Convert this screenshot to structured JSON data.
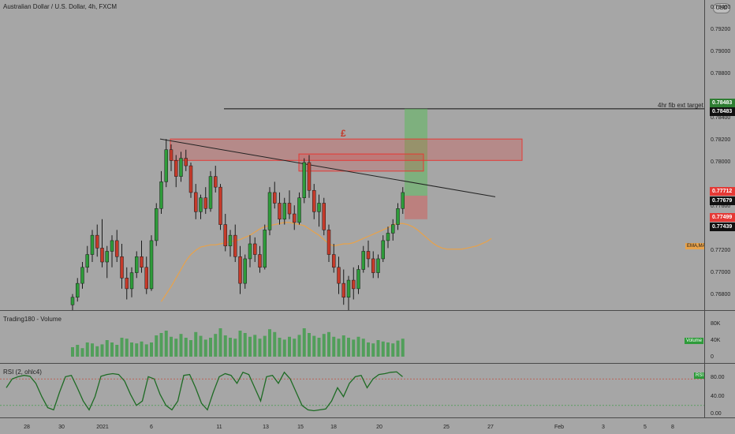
{
  "header": {
    "symbol_title": "Australian Dollar / U.S. Dollar, 4h, FXCM",
    "currency_button": "USD"
  },
  "annotations": {
    "fib_label": "4hr fib ext target",
    "symbol_mark": "£"
  },
  "price_axis": {
    "ticks": [
      "0.79400",
      "0.79200",
      "0.79000",
      "0.78800",
      "0.78400",
      "0.78200",
      "0.78000",
      "0.77600",
      "0.77200",
      "0.77000",
      "0.76800"
    ],
    "tags": [
      {
        "label": "0.78483",
        "color": "#2e7d32",
        "text": "#ffffff"
      },
      {
        "label": "0.78483",
        "color": "#111111",
        "text": "#ffffff"
      },
      {
        "label": "0.77712",
        "color": "#e53935",
        "text": "#ffffff"
      },
      {
        "label": "0.77679",
        "color": "#111111",
        "text": "#ffffff"
      },
      {
        "label": "0.77499",
        "color": "#e53935",
        "text": "#ffffff"
      },
      {
        "label": "0.77439",
        "color": "#111111",
        "text": "#ffffff"
      }
    ],
    "ema_badge": "EMA,MA"
  },
  "volume_pane": {
    "title": "Trading180 - Volume",
    "ticks": [
      "80K",
      "40K",
      "0"
    ],
    "badge": "Volume"
  },
  "rsi_pane": {
    "title": "RSI (2, ohlc4)",
    "ticks": [
      "80.00",
      "40.00",
      "0.00"
    ],
    "badge": "RSI"
  },
  "time_axis": {
    "ticks": [
      "28",
      "30",
      "2021",
      "6",
      "11",
      "13",
      "15",
      "18",
      "20",
      "25",
      "27",
      "Feb",
      "3",
      "5",
      "8"
    ]
  },
  "colors": {
    "up": "#2e9b3a",
    "down": "#c53a2a",
    "ema": "#e8a24a",
    "zone_red": "#e53935",
    "target_green": "#5cb85c"
  },
  "chart_data": {
    "type": "candlestick",
    "ylim": [
      0.766,
      0.795
    ],
    "fib_target": 0.78483,
    "last_close": 0.77712,
    "candles": [
      [
        0.7665,
        0.7675,
        0.766,
        0.7672
      ],
      [
        0.7672,
        0.769,
        0.7668,
        0.7685
      ],
      [
        0.7685,
        0.7705,
        0.768,
        0.77
      ],
      [
        0.77,
        0.772,
        0.7695,
        0.7712
      ],
      [
        0.7712,
        0.7735,
        0.7705,
        0.773
      ],
      [
        0.773,
        0.774,
        0.771,
        0.7718
      ],
      [
        0.7718,
        0.7745,
        0.77,
        0.7705
      ],
      [
        0.7705,
        0.772,
        0.769,
        0.7715
      ],
      [
        0.7715,
        0.773,
        0.77,
        0.7725
      ],
      [
        0.7725,
        0.7735,
        0.7705,
        0.771
      ],
      [
        0.771,
        0.7722,
        0.768,
        0.769
      ],
      [
        0.769,
        0.77,
        0.767,
        0.768
      ],
      [
        0.768,
        0.77,
        0.7672,
        0.7695
      ],
      [
        0.7695,
        0.7715,
        0.769,
        0.771
      ],
      [
        0.771,
        0.7725,
        0.7695,
        0.77
      ],
      [
        0.77,
        0.771,
        0.7675,
        0.768
      ],
      [
        0.768,
        0.773,
        0.7678,
        0.7725
      ],
      [
        0.7725,
        0.776,
        0.772,
        0.7755
      ],
      [
        0.7755,
        0.779,
        0.775,
        0.778
      ],
      [
        0.778,
        0.782,
        0.7775,
        0.781
      ],
      [
        0.781,
        0.7815,
        0.779,
        0.78
      ],
      [
        0.78,
        0.7805,
        0.7775,
        0.7785
      ],
      [
        0.7785,
        0.7808,
        0.778,
        0.7802
      ],
      [
        0.7802,
        0.781,
        0.779,
        0.7795
      ],
      [
        0.7795,
        0.7798,
        0.7765,
        0.777
      ],
      [
        0.777,
        0.7778,
        0.7745,
        0.7752
      ],
      [
        0.7752,
        0.7768,
        0.7745,
        0.7765
      ],
      [
        0.7765,
        0.7775,
        0.775,
        0.7755
      ],
      [
        0.7755,
        0.779,
        0.7752,
        0.7785
      ],
      [
        0.7785,
        0.7795,
        0.777,
        0.7775
      ],
      [
        0.7775,
        0.7778,
        0.7735,
        0.774
      ],
      [
        0.774,
        0.775,
        0.7715,
        0.772
      ],
      [
        0.772,
        0.7735,
        0.771,
        0.773
      ],
      [
        0.773,
        0.774,
        0.7705,
        0.771
      ],
      [
        0.771,
        0.772,
        0.7675,
        0.7685
      ],
      [
        0.7685,
        0.7712,
        0.768,
        0.7708
      ],
      [
        0.7708,
        0.773,
        0.77,
        0.7722
      ],
      [
        0.7722,
        0.7728,
        0.7705,
        0.7712
      ],
      [
        0.7712,
        0.772,
        0.7695,
        0.77
      ],
      [
        0.77,
        0.774,
        0.7698,
        0.7735
      ],
      [
        0.7735,
        0.7775,
        0.773,
        0.777
      ],
      [
        0.777,
        0.778,
        0.7755,
        0.776
      ],
      [
        0.776,
        0.777,
        0.774,
        0.7745
      ],
      [
        0.7745,
        0.7765,
        0.774,
        0.776
      ],
      [
        0.776,
        0.7772,
        0.7745,
        0.775
      ],
      [
        0.775,
        0.7758,
        0.7735,
        0.7742
      ],
      [
        0.7742,
        0.777,
        0.774,
        0.7765
      ],
      [
        0.7765,
        0.7802,
        0.776,
        0.7798
      ],
      [
        0.7798,
        0.7805,
        0.7765,
        0.7772
      ],
      [
        0.7772,
        0.7778,
        0.7745,
        0.7752
      ],
      [
        0.7752,
        0.7768,
        0.7738,
        0.776
      ],
      [
        0.776,
        0.7765,
        0.773,
        0.7735
      ],
      [
        0.7735,
        0.774,
        0.7705,
        0.7712
      ],
      [
        0.7712,
        0.7722,
        0.7695,
        0.77
      ],
      [
        0.77,
        0.771,
        0.7675,
        0.7685
      ],
      [
        0.7685,
        0.7698,
        0.7665,
        0.7672
      ],
      [
        0.7672,
        0.7692,
        0.766,
        0.7688
      ],
      [
        0.7688,
        0.77,
        0.767,
        0.768
      ],
      [
        0.768,
        0.7702,
        0.7675,
        0.7698
      ],
      [
        0.7698,
        0.772,
        0.7695,
        0.7715
      ],
      [
        0.7715,
        0.7725,
        0.77,
        0.7708
      ],
      [
        0.7708,
        0.7715,
        0.769,
        0.7695
      ],
      [
        0.7695,
        0.7712,
        0.769,
        0.7708
      ],
      [
        0.7708,
        0.773,
        0.7705,
        0.7725
      ],
      [
        0.7725,
        0.7738,
        0.7718,
        0.7732
      ],
      [
        0.7732,
        0.7745,
        0.7725,
        0.774
      ],
      [
        0.774,
        0.776,
        0.7735,
        0.7755
      ],
      [
        0.7755,
        0.7775,
        0.775,
        0.777
      ]
    ],
    "ema": [
      0.7668,
      0.7675,
      0.7682,
      0.769,
      0.7698,
      0.7706,
      0.7712,
      0.7716,
      0.7719,
      0.772,
      0.7721,
      0.7721,
      0.7722,
      0.7723,
      0.7724,
      0.7725,
      0.7726,
      0.7728,
      0.773,
      0.7733,
      0.7736,
      0.7738,
      0.7739,
      0.774,
      0.7741,
      0.7742,
      0.7742,
      0.7741,
      0.774,
      0.7739,
      0.7736,
      0.7733,
      0.773,
      0.7726,
      0.7722,
      0.772,
      0.7721,
      0.7722,
      0.7722,
      0.7723,
      0.7725,
      0.7727,
      0.7729,
      0.7731,
      0.7733,
      0.7735,
      0.7737,
      0.774,
      0.7741,
      0.7741,
      0.774,
      0.7738,
      0.7735,
      0.7731,
      0.7727,
      0.7723,
      0.772,
      0.7718,
      0.7717,
      0.7717,
      0.7717,
      0.7717,
      0.7718,
      0.7719,
      0.772,
      0.7722,
      0.7724,
      0.7727
    ],
    "volume": [
      20,
      25,
      18,
      30,
      28,
      22,
      26,
      35,
      30,
      25,
      40,
      38,
      30,
      28,
      32,
      26,
      30,
      45,
      50,
      55,
      42,
      38,
      48,
      40,
      35,
      52,
      44,
      36,
      40,
      48,
      60,
      45,
      40,
      38,
      55,
      50,
      42,
      46,
      38,
      44,
      58,
      52,
      40,
      36,
      42,
      38,
      46,
      60,
      50,
      44,
      40,
      48,
      52,
      42,
      38,
      45,
      40,
      36,
      42,
      38,
      30,
      28,
      35,
      32,
      30,
      28,
      34,
      38
    ],
    "rsi": [
      60,
      80,
      85,
      88,
      86,
      70,
      40,
      15,
      10,
      50,
      85,
      88,
      60,
      30,
      10,
      40,
      86,
      90,
      92,
      90,
      75,
      45,
      20,
      30,
      85,
      80,
      45,
      20,
      10,
      30,
      88,
      90,
      60,
      25,
      10,
      50,
      85,
      92,
      88,
      70,
      95,
      90,
      60,
      30,
      85,
      88,
      70,
      95,
      80,
      50,
      20,
      10,
      8,
      10,
      12,
      30,
      60,
      40,
      70,
      85,
      88,
      60,
      80,
      90,
      92,
      95,
      96,
      85
    ]
  }
}
